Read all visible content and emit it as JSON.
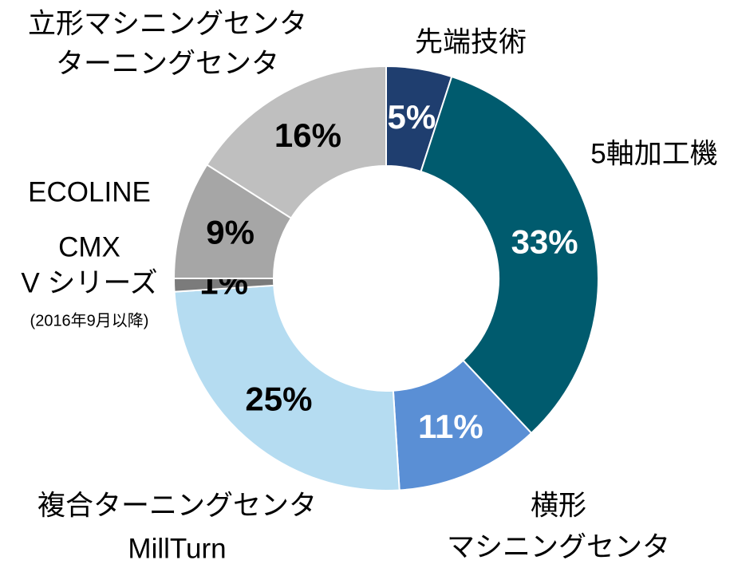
{
  "chart_data": {
    "type": "donut",
    "categories": [
      [
        "先端技術"
      ],
      [
        "5軸加工機"
      ],
      [
        "横形",
        "マシニングセンタ"
      ],
      [
        "複合ターニングセンタ",
        "MillTurn"
      ],
      [
        "CMX",
        "V シリーズ",
        "(2016年9月以降)"
      ],
      [
        "ECOLINE"
      ],
      [
        "立形マシニングセンタ",
        "ターニングセンタ"
      ]
    ],
    "values": [
      5,
      33,
      11,
      25,
      1,
      9,
      16
    ],
    "value_labels": [
      "5%",
      "33%",
      "11%",
      "25%",
      "1%",
      "9%",
      "16%"
    ],
    "colors": [
      "#1f3e6f",
      "#005b6e",
      "#5a8fd5",
      "#b5dcf1",
      "#7b7b7b",
      "#a6a6a6",
      "#bfbfbf"
    ],
    "value_label_colors": [
      "#ffffff",
      "#ffffff",
      "#ffffff",
      "#000000",
      "#000000",
      "#000000",
      "#000000"
    ]
  }
}
